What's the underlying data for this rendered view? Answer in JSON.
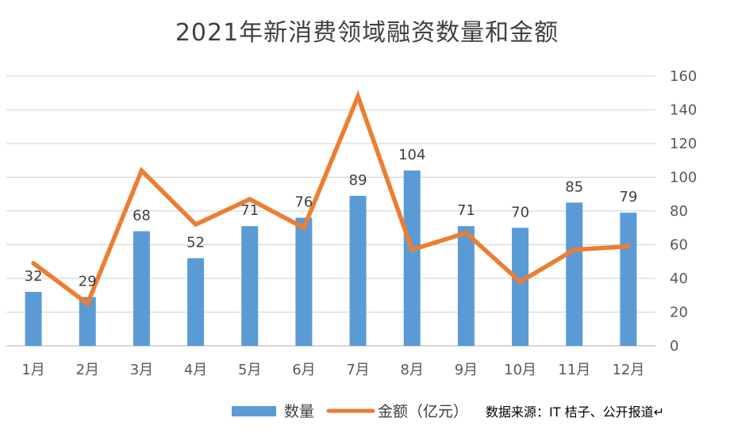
{
  "chart_data": {
    "type": "bar",
    "title": "2021年新消费领域融资数量和金额",
    "categories": [
      "1月",
      "2月",
      "3月",
      "4月",
      "5月",
      "6月",
      "7月",
      "8月",
      "9月",
      "10月",
      "11月",
      "12月"
    ],
    "series": [
      {
        "name": "数量",
        "type": "bar",
        "color": "#5B9BD5",
        "values": [
          32,
          29,
          68,
          52,
          71,
          76,
          89,
          104,
          71,
          70,
          85,
          79
        ],
        "labels": [
          "32",
          "29",
          "68",
          "52",
          "71",
          "76",
          "89",
          "104",
          "71",
          "70",
          "85",
          "79"
        ]
      },
      {
        "name": "金额（亿元）",
        "type": "line",
        "color": "#ED7D31",
        "values": [
          49,
          25,
          104,
          72,
          87,
          70,
          148,
          57,
          67,
          38,
          57,
          59
        ]
      }
    ],
    "y_axis": {
      "position": "right",
      "ylim": [
        0,
        160
      ],
      "ticks": [
        "0",
        "20",
        "40",
        "60",
        "80",
        "100",
        "120",
        "140",
        "160"
      ]
    },
    "grid": true,
    "legend": "bottom",
    "source": "数据来源：IT 桔子、公开报道↵"
  }
}
